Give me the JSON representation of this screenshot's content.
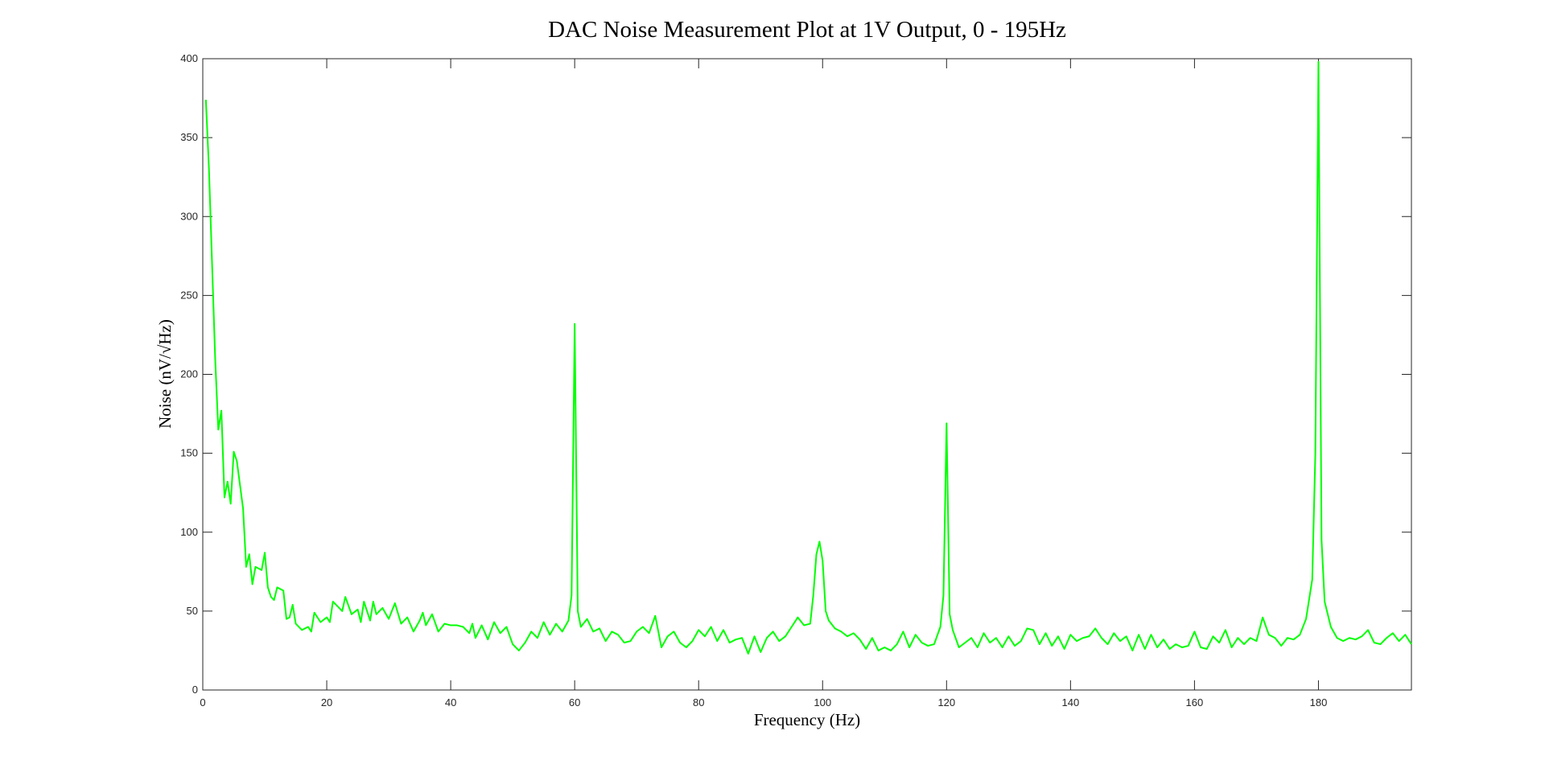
{
  "chart_data": {
    "type": "line",
    "title": "DAC Noise Measurement Plot at 1V Output, 0 - 195Hz",
    "x_label": "Frequency (Hz)",
    "y_label": "Noise (nV/√Hz)",
    "color": "#00ff00",
    "xlim": [
      0,
      195
    ],
    "ylim": [
      0,
      400
    ],
    "xticks": [
      0,
      20,
      40,
      60,
      80,
      100,
      120,
      140,
      160,
      180
    ],
    "yticks": [
      0,
      50,
      100,
      150,
      200,
      250,
      300,
      350,
      400
    ],
    "grid": false,
    "x": [
      0.5,
      1,
      1.5,
      2,
      2.5,
      3,
      3.5,
      4,
      4.5,
      5,
      5.5,
      6,
      6.5,
      7,
      7.5,
      8,
      8.5,
      9,
      9.5,
      10,
      10.5,
      11,
      11.5,
      12,
      13,
      13.5,
      14,
      14.5,
      15,
      16,
      17,
      17.5,
      18,
      19,
      20,
      20.5,
      21,
      22,
      22.5,
      23,
      24,
      25,
      25.5,
      26,
      27,
      27.5,
      28,
      29,
      30,
      31,
      32,
      33,
      34,
      35,
      35.5,
      36,
      37,
      38,
      39,
      40,
      41,
      42,
      43,
      43.5,
      44,
      45,
      46,
      47,
      48,
      49,
      50,
      51,
      52,
      53,
      54,
      55,
      56,
      57,
      58,
      59,
      59.5,
      60,
      60.5,
      61,
      62,
      63,
      64,
      65,
      66,
      67,
      68,
      69,
      70,
      71,
      72,
      73,
      74,
      75,
      76,
      77,
      78,
      79,
      80,
      81,
      82,
      83,
      84,
      85,
      86,
      87,
      88,
      89,
      90,
      91,
      92,
      93,
      94,
      95,
      96,
      97,
      98,
      98.5,
      99,
      99.5,
      100,
      100.5,
      101,
      102,
      103,
      104,
      105,
      106,
      107,
      108,
      109,
      110,
      111,
      112,
      113,
      114,
      115,
      116,
      117,
      118,
      119,
      119.5,
      120,
      120.5,
      121,
      122,
      123,
      124,
      125,
      126,
      127,
      128,
      129,
      130,
      131,
      132,
      133,
      134,
      135,
      136,
      137,
      138,
      139,
      140,
      141,
      142,
      143,
      144,
      145,
      146,
      147,
      148,
      149,
      150,
      151,
      152,
      153,
      154,
      155,
      156,
      157,
      158,
      159,
      160,
      161,
      162,
      163,
      164,
      165,
      166,
      167,
      168,
      169,
      170,
      171,
      172,
      173,
      174,
      175,
      176,
      177,
      178,
      179,
      179.5,
      180,
      180.5,
      181,
      182,
      183,
      184,
      185,
      186,
      187,
      188,
      189,
      190,
      191,
      192,
      193,
      194,
      195
    ],
    "values": [
      374,
      330,
      270,
      210,
      165,
      177,
      122,
      132,
      118,
      151,
      145,
      130,
      115,
      78,
      86,
      67,
      78,
      77,
      76,
      87,
      65,
      59,
      57,
      65,
      63,
      45,
      46,
      54,
      42,
      38,
      40,
      37,
      49,
      43,
      46,
      43,
      56,
      52,
      50,
      59,
      48,
      51,
      43,
      56,
      44,
      56,
      48,
      52,
      45,
      55,
      42,
      46,
      37,
      44,
      49,
      41,
      48,
      37,
      42,
      41,
      41,
      40,
      36,
      42,
      33,
      41,
      32,
      43,
      36,
      40,
      29,
      25,
      30,
      37,
      33,
      43,
      35,
      42,
      37,
      44,
      60,
      232,
      50,
      40,
      45,
      37,
      39,
      31,
      37,
      35,
      30,
      31,
      37,
      40,
      36,
      47,
      27,
      34,
      37,
      30,
      27,
      31,
      38,
      34,
      40,
      31,
      38,
      30,
      32,
      33,
      23,
      34,
      24,
      33,
      37,
      31,
      34,
      40,
      46,
      41,
      42,
      60,
      86,
      94,
      82,
      50,
      44,
      39,
      37,
      34,
      36,
      32,
      26,
      33,
      25,
      27,
      25,
      29,
      37,
      27,
      35,
      30,
      28,
      29,
      40,
      60,
      169,
      48,
      38,
      27,
      30,
      33,
      27,
      36,
      30,
      33,
      27,
      34,
      28,
      31,
      39,
      38,
      29,
      36,
      28,
      34,
      26,
      35,
      31,
      33,
      34,
      39,
      33,
      29,
      36,
      31,
      34,
      25,
      35,
      26,
      35,
      27,
      32,
      26,
      29,
      27,
      28,
      37,
      27,
      26,
      34,
      30,
      38,
      27,
      33,
      29,
      33,
      31,
      46,
      35,
      33,
      28,
      33,
      32,
      35,
      45,
      70,
      150,
      398,
      95,
      56,
      40,
      33,
      31,
      33,
      32,
      34,
      38,
      30,
      29,
      33,
      36,
      31,
      35,
      29
    ]
  }
}
